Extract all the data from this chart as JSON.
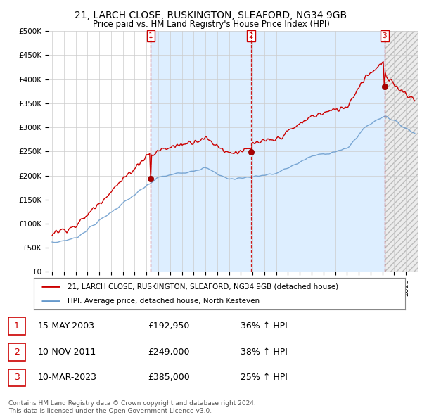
{
  "title1": "21, LARCH CLOSE, RUSKINGTON, SLEAFORD, NG34 9GB",
  "title2": "Price paid vs. HM Land Registry's House Price Index (HPI)",
  "legend1": "21, LARCH CLOSE, RUSKINGTON, SLEAFORD, NG34 9GB (detached house)",
  "legend2": "HPI: Average price, detached house, North Kesteven",
  "footer1": "Contains HM Land Registry data © Crown copyright and database right 2024.",
  "footer2": "This data is licensed under the Open Government Licence v3.0.",
  "transactions": [
    {
      "num": 1,
      "date": "15-MAY-2003",
      "price": "£192,950",
      "hpi": "36% ↑ HPI",
      "year": 2003.37
    },
    {
      "num": 2,
      "date": "10-NOV-2011",
      "price": "£249,000",
      "hpi": "38% ↑ HPI",
      "year": 2011.86
    },
    {
      "num": 3,
      "date": "10-MAR-2023",
      "price": "£385,000",
      "hpi": "25% ↑ HPI",
      "year": 2023.19
    }
  ],
  "transaction_prices": [
    192950,
    249000,
    385000
  ],
  "price_color": "#cc0000",
  "hpi_color": "#6699cc",
  "shade_color": "#ddeeff",
  "vline_color": "#cc0000",
  "ylim": [
    0,
    500000
  ],
  "yticks": [
    0,
    50000,
    100000,
    150000,
    200000,
    250000,
    300000,
    350000,
    400000,
    450000,
    500000
  ],
  "ytick_labels": [
    "£0",
    "£50K",
    "£100K",
    "£150K",
    "£200K",
    "£250K",
    "£300K",
    "£350K",
    "£400K",
    "£450K",
    "£500K"
  ],
  "background_color": "#ffffff",
  "grid_color": "#cccccc"
}
